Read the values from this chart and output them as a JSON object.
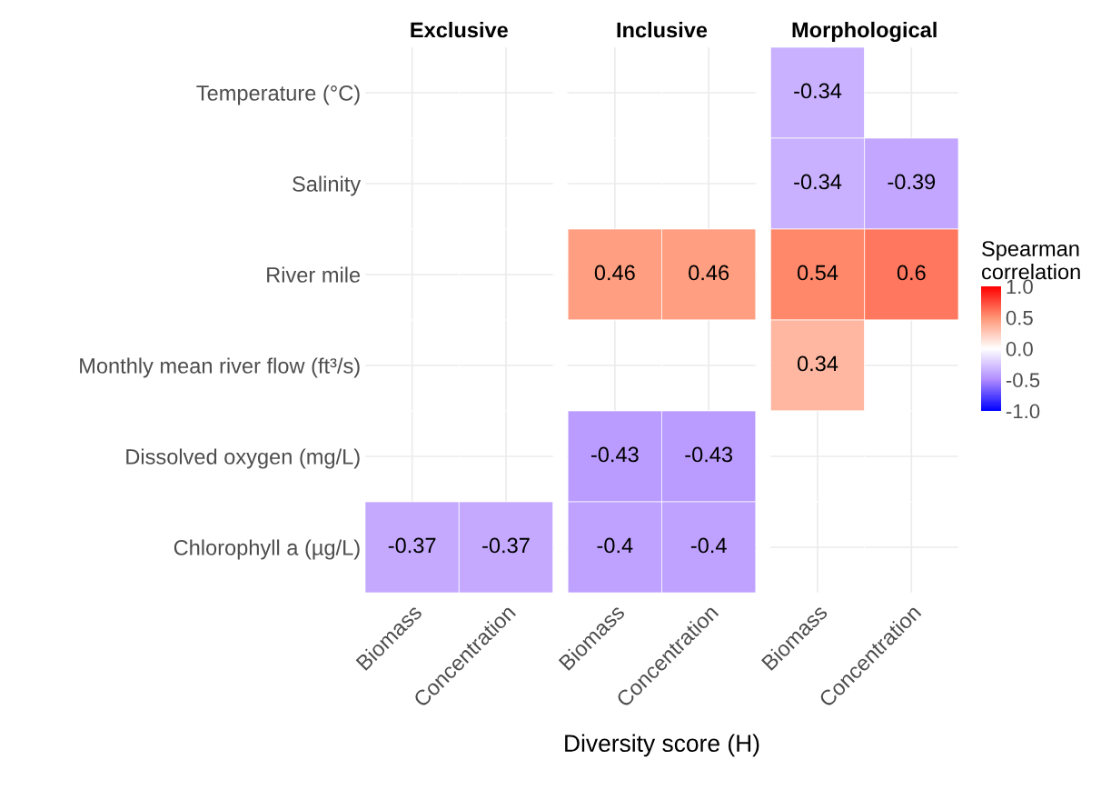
{
  "chart_data": {
    "type": "heatmap",
    "xlabel": "Diversity score (H)",
    "annotations": [
      "Exclusive",
      "Inclusive",
      "Morphological"
    ],
    "categories": [
      "Biomass",
      "Concentration",
      "Biomass",
      "Concentration",
      "Biomass",
      "Concentration"
    ],
    "y_categories": [
      "Temperature (°C)",
      "Salinity",
      "River mile",
      "Monthly mean river flow (ft³/s)",
      "Dissolved oxygen (mg/L)",
      "Chlorophyll a (µg/L)"
    ],
    "cells": [
      [
        null,
        null,
        null,
        null,
        -0.34,
        null
      ],
      [
        null,
        null,
        null,
        null,
        -0.34,
        -0.39
      ],
      [
        null,
        null,
        0.46,
        0.46,
        0.54,
        0.6
      ],
      [
        null,
        null,
        null,
        null,
        0.34,
        null
      ],
      [
        null,
        null,
        -0.43,
        -0.43,
        null,
        null
      ],
      [
        -0.37,
        -0.37,
        -0.4,
        -0.4,
        null,
        null
      ]
    ],
    "data_labels": true,
    "grid": true,
    "clim": [
      -1,
      1
    ],
    "clabel": "Spearman\ncorrelation",
    "cticks": [
      {
        "value": 1,
        "label": "1.0"
      },
      {
        "value": 0.5,
        "label": "0.5"
      },
      {
        "value": 0,
        "label": "0.0"
      },
      {
        "value": -0.5,
        "label": "-0.5"
      },
      {
        "value": -1,
        "label": "-1.0"
      }
    ]
  }
}
